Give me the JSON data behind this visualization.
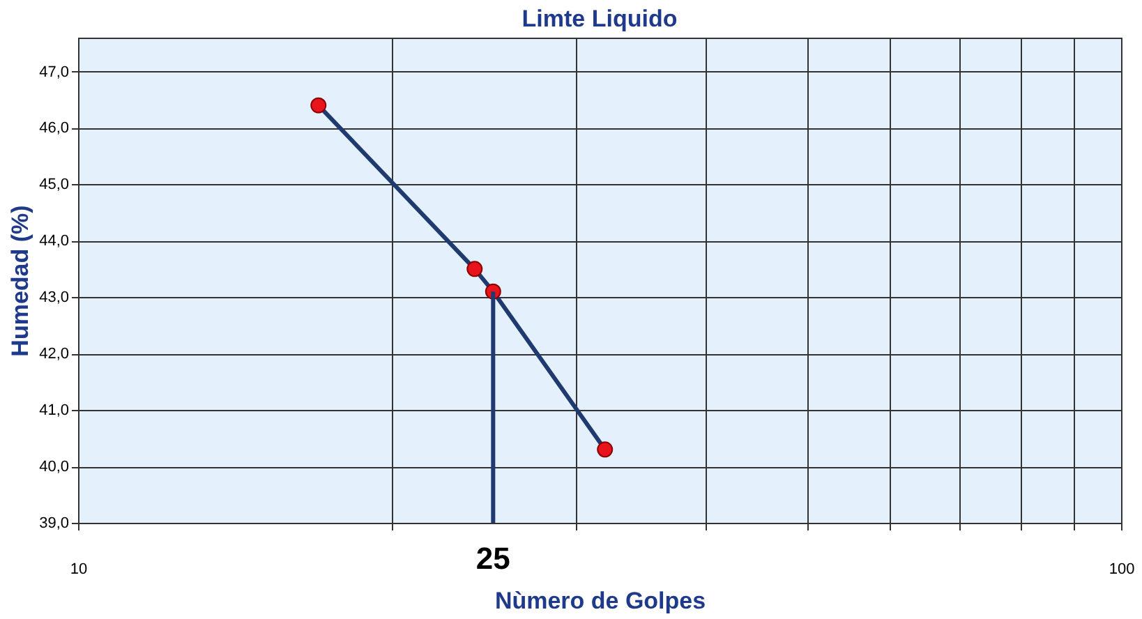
{
  "chart_data": {
    "type": "line",
    "title": "Limte Liquido",
    "xlabel": "Nùmero de Golpes",
    "ylabel": "Humedad (%)",
    "x": [
      17,
      24,
      25,
      32
    ],
    "series": [
      {
        "color": "#1f3a6e",
        "values": [
          46.4,
          43.5,
          43.1,
          40.3
        ],
        "marker": "circle",
        "colors": [
          "#e8141c",
          "#e8141c",
          "#e8141c",
          "#e8141c"
        ]
      },
      {
        "type": "line",
        "color": "#1f3a6e",
        "x": [
          25,
          25
        ],
        "values": [
          39,
          43.1
        ],
        "marker": "none"
      }
    ],
    "log": "x",
    "xlim": [
      10,
      100
    ],
    "xticks": [
      10,
      {
        "value": 20,
        "label": null
      },
      {
        "value": 30,
        "label": null
      },
      {
        "value": 40,
        "label": null
      },
      {
        "value": 50,
        "label": null
      },
      {
        "value": 60,
        "label": null
      },
      {
        "value": 70,
        "label": null
      },
      {
        "value": 80,
        "label": null
      },
      {
        "value": 90,
        "label": null
      },
      100
    ],
    "ylim": [
      39,
      47.6
    ],
    "yticks": [
      {
        "value": 39,
        "label": "39,0"
      },
      {
        "value": 40,
        "label": "40,0"
      },
      {
        "value": 41,
        "label": "41,0"
      },
      {
        "value": 42,
        "label": "42,0"
      },
      {
        "value": 43,
        "label": "43,0"
      },
      {
        "value": 44,
        "label": "44,0"
      },
      {
        "value": 45,
        "label": "45,0"
      },
      {
        "value": 46,
        "label": "46,0"
      },
      {
        "value": 47,
        "label": "47,0"
      }
    ],
    "annotations": [
      {
        "text": "25",
        "x": 25,
        "y": 39
      }
    ],
    "grid": true
  }
}
